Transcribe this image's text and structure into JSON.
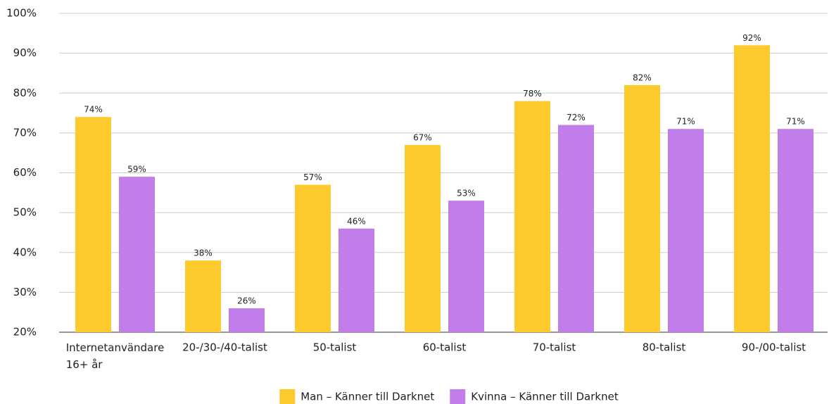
{
  "chart_data": {
    "type": "bar",
    "categories": [
      "Internetanvändare 16+ år",
      "20-/30-/40-talist",
      "50-talist",
      "60-talist",
      "70-talist",
      "80-talist",
      "90-/00-talist"
    ],
    "series": [
      {
        "name": "Man – Känner till Darknet",
        "color": "#fdca2e",
        "values": [
          74,
          38,
          57,
          67,
          78,
          82,
          92
        ],
        "value_labels": [
          "74%",
          "38%",
          "57%",
          "67%",
          "78%",
          "82%",
          "92%"
        ]
      },
      {
        "name": "Kvinna – Känner till Darknet",
        "color": "#c17de9",
        "values": [
          59,
          26,
          46,
          53,
          72,
          71,
          71
        ],
        "value_labels": [
          "59%",
          "26%",
          "46%",
          "53%",
          "72%",
          "71%",
          "71%"
        ]
      }
    ],
    "ylim": [
      20,
      100
    ],
    "yticks": [
      {
        "value": 20,
        "label": "20%"
      },
      {
        "value": 30,
        "label": "30%"
      },
      {
        "value": 40,
        "label": "40%"
      },
      {
        "value": 50,
        "label": "50%"
      },
      {
        "value": 60,
        "label": "60%"
      },
      {
        "value": 70,
        "label": "70%"
      },
      {
        "value": 80,
        "label": "80%"
      },
      {
        "value": 90,
        "label": "90%"
      },
      {
        "value": 100,
        "label": "100%"
      }
    ],
    "grid": true,
    "legend": "bottom"
  }
}
